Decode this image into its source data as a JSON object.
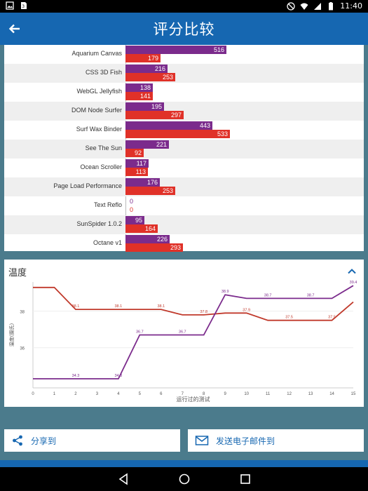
{
  "status_bar": {
    "time": "11:40"
  },
  "app_bar": {
    "title": "评分比较"
  },
  "benchmarks": {
    "max_value": 533,
    "rows": [
      {
        "label": "Aquarium Canvas",
        "v1": 516,
        "v2": 179
      },
      {
        "label": "CSS 3D Fish",
        "v1": 216,
        "v2": 253
      },
      {
        "label": "WebGL Jellyfish",
        "v1": 138,
        "v2": 141
      },
      {
        "label": "DOM Node Surfer",
        "v1": 195,
        "v2": 297
      },
      {
        "label": "Surf Wax Binder",
        "v1": 443,
        "v2": 533
      },
      {
        "label": "See The Sun",
        "v1": 221,
        "v2": 92
      },
      {
        "label": "Ocean Scroller",
        "v1": 117,
        "v2": 113
      },
      {
        "label": "Page Load Performance",
        "v1": 176,
        "v2": 253
      },
      {
        "label": "Text Reflo",
        "v1": 0,
        "v2": 0
      },
      {
        "label": "SunSpider 1.0.2",
        "v1": 95,
        "v2": 164
      },
      {
        "label": "Octane v1",
        "v1": 226,
        "v2": 293
      }
    ],
    "series_colors": [
      "#7b2b8c",
      "#e03128"
    ]
  },
  "temperature": {
    "title": "温度",
    "chart_data": {
      "type": "line",
      "xlabel": "运行过的测试",
      "ylabel": "温度(摄氏)",
      "x": [
        0,
        1,
        2,
        3,
        4,
        5,
        6,
        7,
        8,
        9,
        10,
        11,
        12,
        13,
        14,
        15
      ],
      "xlim": [
        0,
        15
      ],
      "ylim": [
        33.8,
        39.6
      ],
      "yticks": [
        36,
        38
      ],
      "series": [
        {
          "color": "#c0392b",
          "points": [
            [
              0,
              39.3
            ],
            [
              1,
              39.3
            ],
            [
              2,
              38.1
            ],
            [
              3,
              38.1
            ],
            [
              4,
              38.1
            ],
            [
              5,
              38.1
            ],
            [
              6,
              38.1
            ],
            [
              7,
              37.8
            ],
            [
              8,
              37.8
            ],
            [
              9,
              37.9
            ],
            [
              10,
              37.9
            ],
            [
              11,
              37.5
            ],
            [
              12,
              37.5
            ],
            [
              13,
              37.5
            ],
            [
              14,
              37.5
            ],
            [
              15,
              38.5
            ]
          ],
          "labels": [
            [
              2,
              "38.1"
            ],
            [
              4,
              "38.1"
            ],
            [
              6,
              "38.1"
            ],
            [
              8,
              "37.8"
            ],
            [
              10,
              "37.9"
            ],
            [
              12,
              "37.5"
            ],
            [
              14,
              "37.5"
            ]
          ]
        },
        {
          "color": "#7b2b8c",
          "points": [
            [
              0,
              34.3
            ],
            [
              1,
              34.3
            ],
            [
              2,
              34.3
            ],
            [
              3,
              34.3
            ],
            [
              4,
              34.3
            ],
            [
              5,
              36.7
            ],
            [
              6,
              36.7
            ],
            [
              7,
              36.7
            ],
            [
              8,
              36.7
            ],
            [
              9,
              38.9
            ],
            [
              10,
              38.7
            ],
            [
              11,
              38.7
            ],
            [
              12,
              38.7
            ],
            [
              13,
              38.7
            ],
            [
              14,
              38.7
            ],
            [
              15,
              39.4
            ]
          ],
          "labels": [
            [
              2,
              "34.3"
            ],
            [
              4,
              "34.3"
            ],
            [
              5,
              "36.7"
            ],
            [
              7,
              "36.7"
            ],
            [
              9,
              "38.9"
            ],
            [
              11,
              "38.7"
            ],
            [
              13,
              "38.7"
            ],
            [
              15,
              "39.4"
            ]
          ]
        }
      ]
    }
  },
  "actions": {
    "share_label": "分享到",
    "email_label": "发送电子邮件到"
  }
}
